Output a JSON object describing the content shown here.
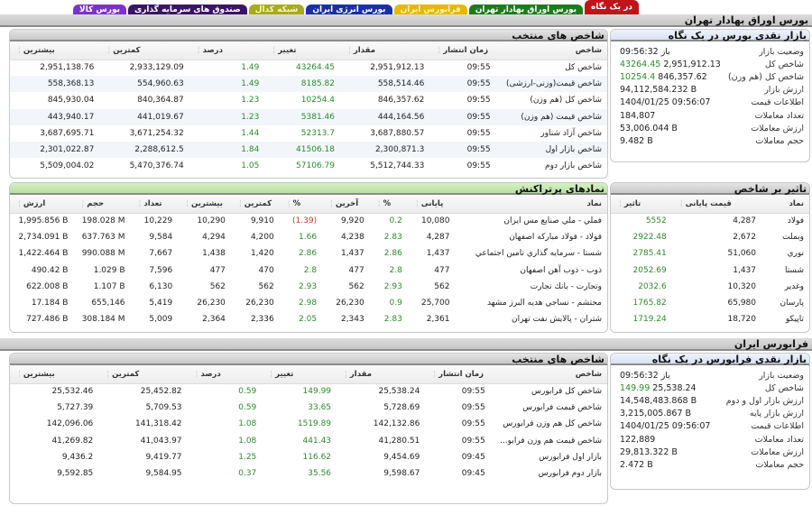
{
  "tabs": [
    {
      "label": "در یک نگاه",
      "bg": "#c0141b",
      "fg": "#ffffff"
    },
    {
      "label": "بورس اوراق بهادار تهران",
      "bg": "#1d7a1d",
      "fg": "#ffffff"
    },
    {
      "label": "فرابورس ایران",
      "bg": "#e6b800",
      "fg": "#fff4b0"
    },
    {
      "label": "بورس انرژی ایران",
      "bg": "#1a2fa8",
      "fg": "#ffffff"
    },
    {
      "label": "شبکه کدال",
      "bg": "#a8ab1a",
      "fg": "#f4f4c8"
    },
    {
      "label": "صندوق های سرمایه گذاری",
      "bg": "#3a1563",
      "fg": "#ffffff"
    },
    {
      "label": "بورس کالا",
      "bg": "#7b32c8",
      "fg": "#ffffff"
    }
  ],
  "tse": {
    "section_title": "بورس اوراق بهادار تهران",
    "glance": {
      "title": "بازار نقدی بورس در یک نگاه",
      "rows": [
        {
          "label": "وضعیت بازار",
          "value": "باز 09:56:32",
          "change": ""
        },
        {
          "label": "شاخص کل",
          "value": "2,951,912.13",
          "change": "43264.45"
        },
        {
          "label": "شاخص کل (هم وزن)",
          "value": "846,357.62",
          "change": "10254.4"
        },
        {
          "label": "ارزش بازار",
          "value": "94,112,584.232 B",
          "change": ""
        },
        {
          "label": "اطلاعات قیمت",
          "value": "1404/01/25 09:56:07",
          "change": ""
        },
        {
          "label": "تعداد معاملات",
          "value": "184,807",
          "change": ""
        },
        {
          "label": "ارزش معاملات",
          "value": "53,006.044 B",
          "change": ""
        },
        {
          "label": "حجم معاملات",
          "value": "9.482 B",
          "change": ""
        }
      ]
    },
    "indices": {
      "title": "شاخص های منتخب",
      "headers": [
        "شاخص",
        "زمان انتشار",
        "مقدار",
        "تغییر",
        "درصد",
        "کمترین",
        "بیشترین"
      ],
      "rows": [
        [
          "شاخص کل",
          "09:55",
          "2,951,912.13",
          "43264.45",
          "1.49",
          "2,933,129.09",
          "2,951,138.76"
        ],
        [
          "شاخص قیمت(وزنی-ارزشی)",
          "09:55",
          "558,514.46",
          "8185.82",
          "1.49",
          "554,960.63",
          "558,368.13"
        ],
        [
          "شاخص کل (هم وزن)",
          "09:55",
          "846,357.62",
          "10254.4",
          "1.23",
          "840,364.87",
          "845,930.04"
        ],
        [
          "شاخص قیمت (هم وزن)",
          "09:55",
          "444,164.56",
          "5381.46",
          "1.23",
          "441,019.67",
          "443,940.17"
        ],
        [
          "شاخص آزاد شناور",
          "09:55",
          "3,687,880.57",
          "52313.7",
          "1.44",
          "3,671,254.32",
          "3,687,695.71"
        ],
        [
          "شاخص بازار اول",
          "09:55",
          "2,300,871.3",
          "41506.18",
          "1.84",
          "2,288,612.5",
          "2,301,022.87"
        ],
        [
          "شاخص بازار دوم",
          "09:55",
          "5,512,744.33",
          "57106.79",
          "1.05",
          "5,470,376.74",
          "5,509,004.02"
        ]
      ]
    },
    "impact": {
      "title": "تاثیر بر شاخص",
      "headers": [
        "نماد",
        "قیمت پایانی",
        "تاثیر"
      ],
      "rows": [
        [
          "فولاد",
          "4,287",
          "5552"
        ],
        [
          "وبملت",
          "2,672",
          "2922.48"
        ],
        [
          "نوري",
          "51,060",
          "2785.41"
        ],
        [
          "شستا",
          "1,437",
          "2052.69"
        ],
        [
          "وغدير",
          "10,320",
          "2032.6"
        ],
        [
          "پارسان",
          "65,980",
          "1765.82"
        ],
        [
          "تاپیکو",
          "18,720",
          "1719.24"
        ]
      ]
    },
    "top_symbols": {
      "title": "نمادهای پرتراکنش",
      "headers": [
        "نماد",
        "پایانی",
        "%",
        "آخرین",
        "%",
        "کمترین",
        "بیشترین",
        "تعداد",
        "حجم",
        "ارزش"
      ],
      "rows": [
        [
          "فملي - ملي صنايع مس ايران",
          "10,080",
          "0.2",
          "9,920",
          "(1.39)",
          "9,910",
          "10,290",
          "10,229",
          "198.028 M",
          "1,995.856 B"
        ],
        [
          "فولاد - فولاد مباركه اصفهان",
          "4,287",
          "2.83",
          "4,238",
          "1.66",
          "4,200",
          "4,294",
          "9,584",
          "637.763 M",
          "2,734.091 B"
        ],
        [
          "شستا - سرمايه گذاري تامين اجتماعي",
          "1,437",
          "2.86",
          "1,437",
          "2.86",
          "1,420",
          "1,438",
          "7,667",
          "990.088 M",
          "1,422.464 B"
        ],
        [
          "ذوب - ذوب آهن اصفهان",
          "477",
          "2.8",
          "477",
          "2.8",
          "470",
          "477",
          "7,596",
          "1.029 B",
          "490.42 B"
        ],
        [
          "وتجارت - بانك تجارت",
          "562",
          "2.93",
          "562",
          "2.93",
          "562",
          "562",
          "6,130",
          "1.107 B",
          "622.008 B"
        ],
        [
          "محتشم - نساجي هديه البرز مشهد",
          "25,700",
          "0.9",
          "26,230",
          "2.98",
          "26,230",
          "26,230",
          "5,419",
          "655,146",
          "17.184 B"
        ],
        [
          "شتران - پالايش نفت تهران",
          "2,361",
          "2.83",
          "2,343",
          "2.05",
          "2,336",
          "2,364",
          "5,009",
          "308.184 M",
          "727.486 B"
        ]
      ]
    }
  },
  "ifb": {
    "section_title": "فرابورس ایران",
    "glance": {
      "title": "بازار نقدی فرابورس در یک نگاه",
      "rows": [
        {
          "label": "وضعیت بازار",
          "value": "باز 09:56:32",
          "change": ""
        },
        {
          "label": "شاخص کل",
          "value": "25,538.24",
          "change": "149.99"
        },
        {
          "label": "ارزش بازار اول و دوم",
          "value": "14,548,483.868 B",
          "change": ""
        },
        {
          "label": "ارزش بازار پایه",
          "value": "3,215,005.867 B",
          "change": ""
        },
        {
          "label": "اطلاعات قیمت",
          "value": "1404/01/25 09:56:07",
          "change": ""
        },
        {
          "label": "تعداد معاملات",
          "value": "122,889",
          "change": ""
        },
        {
          "label": "ارزش معاملات",
          "value": "29,813.322 B",
          "change": ""
        },
        {
          "label": "حجم معاملات",
          "value": "2.472 B",
          "change": ""
        }
      ]
    },
    "indices": {
      "title": "شاخص های منتخب",
      "headers": [
        "شاخص",
        "زمان انتشار",
        "مقدار",
        "تغییر",
        "درصد",
        "کمترین",
        "بیشترین"
      ],
      "rows": [
        [
          "شاخص کل فرابورس",
          "09:55",
          "25,538.24",
          "149.99",
          "0.59",
          "25,452.82",
          "25,532.46"
        ],
        [
          "شاخص قیمت فرابورس",
          "09:55",
          "5,728.69",
          "33.65",
          "0.59",
          "5,709.53",
          "5,727.39"
        ],
        [
          "شاخص کل هم وزن فرابورس",
          "09:55",
          "142,132.86",
          "1519.89",
          "1.08",
          "141,318.42",
          "142,096.06"
        ],
        [
          "شاخص قیمت هم وزن فرابو...",
          "09:55",
          "41,280.51",
          "441.43",
          "1.08",
          "41,043.97",
          "41,269.82"
        ],
        [
          "بازار اول فرابورس",
          "09:45",
          "9,454.69",
          "116.62",
          "1.25",
          "9,419.77",
          "9,436.2"
        ],
        [
          "بازار دوم فرابورس",
          "09:45",
          "9,598.67",
          "35.56",
          "0.37",
          "9,584.95",
          "9,592.85"
        ]
      ]
    }
  },
  "colors": {
    "positive": "#2e8b2e",
    "negative": "#c0392b"
  }
}
